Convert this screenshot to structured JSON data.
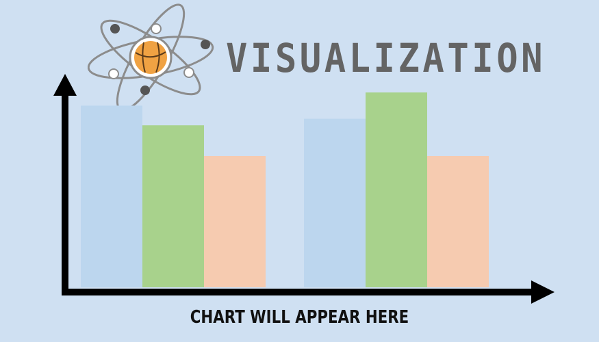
{
  "header": {
    "title": "VISUALIZATION",
    "logo": "atom-basketball-logo"
  },
  "placeholder": {
    "caption": "CHART WILL APPEAR HERE",
    "bar_groups": [
      {
        "bars": [
          0.83,
          0.74,
          0.6
        ]
      },
      {
        "bars": [
          0.77,
          0.89,
          0.6
        ]
      }
    ]
  },
  "colors": {
    "background": "#cfe0f2",
    "title": "#646464",
    "axis": "#000000",
    "bar_blue": "#bcd6ee",
    "bar_green": "#a8d28c",
    "bar_peach": "#f6cbb0",
    "orbit": "#8c8c8c",
    "ball": "#f0a243"
  }
}
